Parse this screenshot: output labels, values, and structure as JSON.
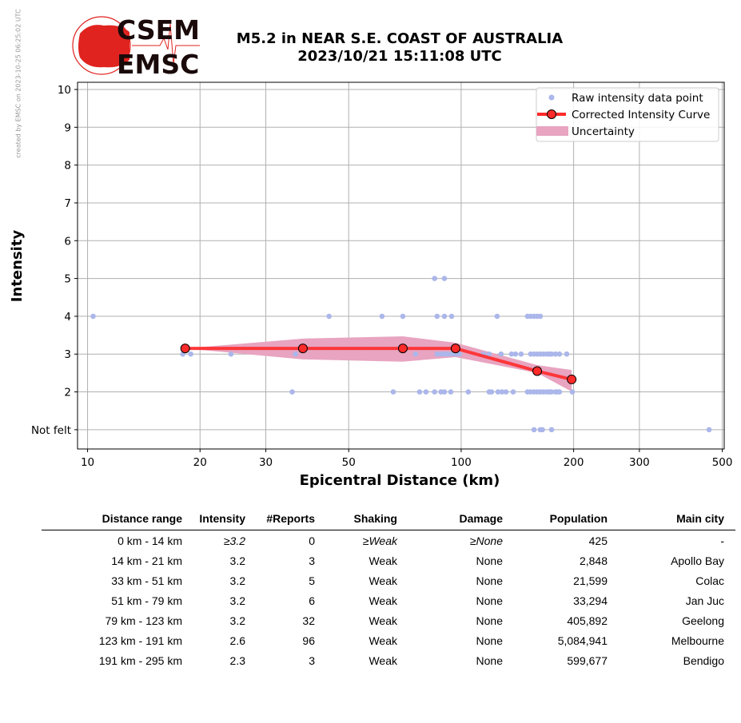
{
  "side_note": "created by EMSC on 2023-10-25 06:25:02 UTC",
  "logo": {
    "top": "CSEM",
    "bottom": "EMSC"
  },
  "title_line1": "M5.2 in NEAR S.E. COAST OF AUSTRALIA",
  "title_line2": "2023/10/21 15:11:08 UTC",
  "colors": {
    "raw": "#abb6ea",
    "curve": "#ff2a2a",
    "band": "#e8a4c0",
    "logo": "#e0231f"
  },
  "chart_data": {
    "type": "scatter",
    "xlabel": "Epicentral Distance (km)",
    "ylabel": "Intensity",
    "xscale": "log",
    "xlim": [
      9.4,
      506
    ],
    "ylim": [
      0.49,
      10.19
    ],
    "xticks": [
      10,
      20,
      30,
      50,
      100,
      200,
      300,
      500
    ],
    "yticks": [
      {
        "v": 1,
        "label": "Not felt"
      },
      {
        "v": 2,
        "label": "2"
      },
      {
        "v": 3,
        "label": "3"
      },
      {
        "v": 4,
        "label": "4"
      },
      {
        "v": 5,
        "label": "5"
      },
      {
        "v": 6,
        "label": "6"
      },
      {
        "v": 7,
        "label": "7"
      },
      {
        "v": 8,
        "label": "8"
      },
      {
        "v": 9,
        "label": "9"
      },
      {
        "v": 10,
        "label": "10"
      }
    ],
    "grid": true,
    "legend": {
      "placement": "top-right",
      "entries": [
        "Raw intensity data point",
        "Corrected Intensity Curve",
        "Uncertainty"
      ]
    },
    "raw_points": [
      [
        10.35,
        4
      ],
      [
        44.3,
        4
      ],
      [
        61.4,
        4
      ],
      [
        69.8,
        4
      ],
      [
        86.2,
        4
      ],
      [
        90.2,
        4
      ],
      [
        94.3,
        4
      ],
      [
        124.8,
        4
      ],
      [
        150.5,
        4
      ],
      [
        153.5,
        4
      ],
      [
        156.7,
        4
      ],
      [
        159.8,
        4
      ],
      [
        162.9,
        4
      ],
      [
        84.9,
        5
      ],
      [
        90.2,
        5
      ],
      [
        17.98,
        3
      ],
      [
        18.89,
        3
      ],
      [
        24.2,
        3
      ],
      [
        36.0,
        3
      ],
      [
        75.5,
        3
      ],
      [
        86.2,
        3
      ],
      [
        88.3,
        3
      ],
      [
        90.2,
        3
      ],
      [
        92.0,
        3
      ],
      [
        94.3,
        3
      ],
      [
        96.6,
        3
      ],
      [
        99.0,
        3
      ],
      [
        114.8,
        3
      ],
      [
        118.8,
        3
      ],
      [
        127.9,
        3
      ],
      [
        136.4,
        3
      ],
      [
        139.8,
        3
      ],
      [
        144.7,
        3
      ],
      [
        153.5,
        3
      ],
      [
        156.7,
        3
      ],
      [
        159.8,
        3
      ],
      [
        162.9,
        3
      ],
      [
        166.2,
        3
      ],
      [
        169.5,
        3
      ],
      [
        172,
        3
      ],
      [
        174.6,
        3
      ],
      [
        178.9,
        3
      ],
      [
        183.3,
        3
      ],
      [
        191.7,
        3
      ],
      [
        35.3,
        2
      ],
      [
        65.8,
        2
      ],
      [
        77.4,
        2
      ],
      [
        80.5,
        2
      ],
      [
        84.9,
        2
      ],
      [
        88.3,
        2
      ],
      [
        90.2,
        2
      ],
      [
        93.8,
        2
      ],
      [
        104.5,
        2
      ],
      [
        118.8,
        2
      ],
      [
        120.6,
        2
      ],
      [
        125.5,
        2
      ],
      [
        128.6,
        2
      ],
      [
        131.8,
        2
      ],
      [
        137.8,
        2
      ],
      [
        150.5,
        2
      ],
      [
        153.5,
        2
      ],
      [
        156.7,
        2
      ],
      [
        159.8,
        2
      ],
      [
        162.9,
        2
      ],
      [
        166.2,
        2
      ],
      [
        169.5,
        2
      ],
      [
        172,
        2
      ],
      [
        174.6,
        2
      ],
      [
        178.9,
        2
      ],
      [
        181,
        2
      ],
      [
        183.3,
        2
      ],
      [
        198.4,
        2
      ],
      [
        156.7,
        1
      ],
      [
        162.9,
        1
      ],
      [
        165,
        1
      ],
      [
        174.6,
        1
      ],
      [
        461,
        1
      ]
    ],
    "curve": [
      [
        18.25,
        3.15
      ],
      [
        37.7,
        3.15
      ],
      [
        69.8,
        3.15
      ],
      [
        96.6,
        3.15
      ],
      [
        159.8,
        2.55
      ],
      [
        197.6,
        2.33
      ]
    ],
    "uncertainty_upper": [
      3.15,
      3.41,
      3.47,
      3.3,
      2.71,
      2.58
    ],
    "uncertainty_lower": [
      3.15,
      2.86,
      2.8,
      2.92,
      2.5,
      2.01
    ]
  },
  "table": {
    "headers": [
      "Distance range",
      "Intensity",
      "#Reports",
      "Shaking",
      "Damage",
      "Population",
      "Main city"
    ],
    "rows": [
      [
        "0 km -   14 km",
        "≥3.2",
        "0",
        "≥Weak",
        "≥None",
        "425",
        "-"
      ],
      [
        "14 km -   21 km",
        "3.2",
        "3",
        "Weak",
        "None",
        "2,848",
        "Apollo Bay"
      ],
      [
        "33 km -   51 km",
        "3.2",
        "5",
        "Weak",
        "None",
        "21,599",
        "Colac"
      ],
      [
        "51 km -   79 km",
        "3.2",
        "6",
        "Weak",
        "None",
        "33,294",
        "Jan Juc"
      ],
      [
        "79 km -  123 km",
        "3.2",
        "32",
        "Weak",
        "None",
        "405,892",
        "Geelong"
      ],
      [
        "123 km -  191 km",
        "2.6",
        "96",
        "Weak",
        "None",
        "5,084,941",
        "Melbourne"
      ],
      [
        "191 km -  295 km",
        "2.3",
        "3",
        "Weak",
        "None",
        "599,677",
        "Bendigo"
      ]
    ]
  }
}
